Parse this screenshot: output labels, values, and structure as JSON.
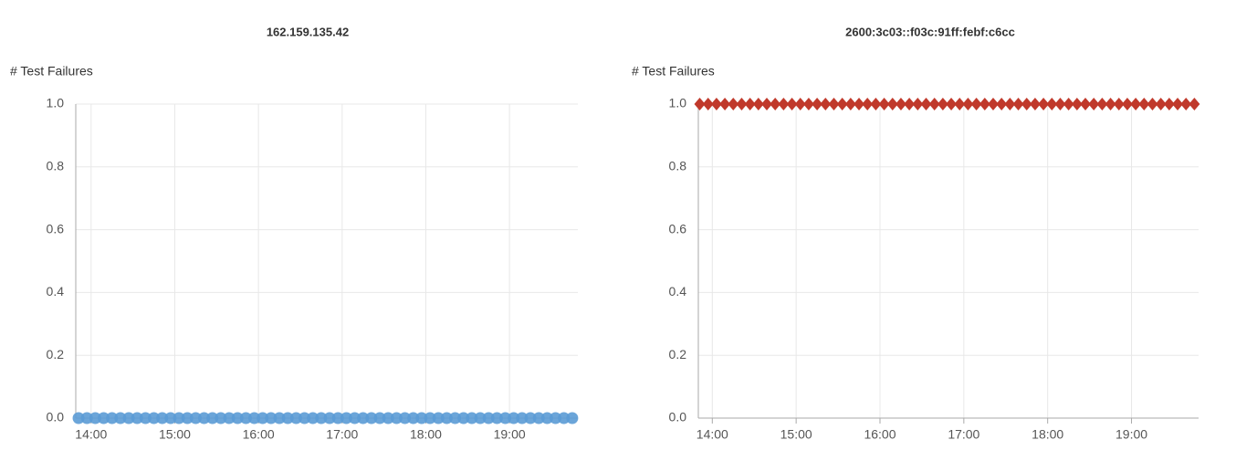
{
  "chart_data": [
    {
      "type": "scatter",
      "title": "162.159.135.42",
      "ylabel": "# Test Failures",
      "marker": "circle",
      "grid": true,
      "x": [
        "13:51",
        "13:57",
        "14:03",
        "14:09",
        "14:15",
        "14:21",
        "14:27",
        "14:33",
        "14:39",
        "14:45",
        "14:51",
        "14:57",
        "15:03",
        "15:09",
        "15:15",
        "15:21",
        "15:27",
        "15:33",
        "15:39",
        "15:45",
        "15:51",
        "15:57",
        "16:03",
        "16:09",
        "16:15",
        "16:21",
        "16:27",
        "16:33",
        "16:39",
        "16:45",
        "16:51",
        "16:57",
        "17:03",
        "17:09",
        "17:15",
        "17:21",
        "17:27",
        "17:33",
        "17:39",
        "17:45",
        "17:51",
        "17:57",
        "18:03",
        "18:09",
        "18:15",
        "18:21",
        "18:27",
        "18:33",
        "18:39",
        "18:45",
        "18:51",
        "18:57",
        "19:03",
        "19:09",
        "19:15",
        "19:21",
        "19:27",
        "19:33",
        "19:39",
        "19:45"
      ],
      "series": [
        {
          "name": "162.159.135.42",
          "color": "#5b9bd5",
          "values": [
            0,
            0,
            0,
            0,
            0,
            0,
            0,
            0,
            0,
            0,
            0,
            0,
            0,
            0,
            0,
            0,
            0,
            0,
            0,
            0,
            0,
            0,
            0,
            0,
            0,
            0,
            0,
            0,
            0,
            0,
            0,
            0,
            0,
            0,
            0,
            0,
            0,
            0,
            0,
            0,
            0,
            0,
            0,
            0,
            0,
            0,
            0,
            0,
            0,
            0,
            0,
            0,
            0,
            0,
            0,
            0,
            0,
            0,
            0,
            0
          ]
        }
      ],
      "xlim": [
        "13:49",
        "19:49"
      ],
      "xticks": [
        "14:00",
        "15:00",
        "16:00",
        "17:00",
        "18:00",
        "19:00"
      ],
      "ylim": [
        0,
        1
      ],
      "yticks": [
        {
          "value": 0,
          "label": "0.0"
        },
        {
          "value": 0.2,
          "label": "0.2"
        },
        {
          "value": 0.4,
          "label": "0.4"
        },
        {
          "value": 0.6,
          "label": "0.6"
        },
        {
          "value": 0.8,
          "label": "0.8"
        },
        {
          "value": 1,
          "label": "1.0"
        }
      ]
    },
    {
      "type": "scatter",
      "title": "2600:3c03::f03c:91ff:febf:c6cc",
      "ylabel": "# Test Failures",
      "marker": "diamond",
      "grid": true,
      "x": [
        "13:51",
        "13:57",
        "14:03",
        "14:09",
        "14:15",
        "14:21",
        "14:27",
        "14:33",
        "14:39",
        "14:45",
        "14:51",
        "14:57",
        "15:03",
        "15:09",
        "15:15",
        "15:21",
        "15:27",
        "15:33",
        "15:39",
        "15:45",
        "15:51",
        "15:57",
        "16:03",
        "16:09",
        "16:15",
        "16:21",
        "16:27",
        "16:33",
        "16:39",
        "16:45",
        "16:51",
        "16:57",
        "17:03",
        "17:09",
        "17:15",
        "17:21",
        "17:27",
        "17:33",
        "17:39",
        "17:45",
        "17:51",
        "17:57",
        "18:03",
        "18:09",
        "18:15",
        "18:21",
        "18:27",
        "18:33",
        "18:39",
        "18:45",
        "18:51",
        "18:57",
        "19:03",
        "19:09",
        "19:15",
        "19:21",
        "19:27",
        "19:33",
        "19:39",
        "19:45"
      ],
      "series": [
        {
          "name": "2600:3c03::f03c:91ff:febf:c6cc",
          "color": "#c0392b",
          "values": [
            1,
            1,
            1,
            1,
            1,
            1,
            1,
            1,
            1,
            1,
            1,
            1,
            1,
            1,
            1,
            1,
            1,
            1,
            1,
            1,
            1,
            1,
            1,
            1,
            1,
            1,
            1,
            1,
            1,
            1,
            1,
            1,
            1,
            1,
            1,
            1,
            1,
            1,
            1,
            1,
            1,
            1,
            1,
            1,
            1,
            1,
            1,
            1,
            1,
            1,
            1,
            1,
            1,
            1,
            1,
            1,
            1,
            1,
            1,
            1
          ]
        }
      ],
      "xlim": [
        "13:50",
        "19:48"
      ],
      "xticks": [
        "14:00",
        "15:00",
        "16:00",
        "17:00",
        "18:00",
        "19:00"
      ],
      "ylim": [
        0,
        1
      ],
      "yticks": [
        {
          "value": 0,
          "label": "0.0"
        },
        {
          "value": 0.2,
          "label": "0.2"
        },
        {
          "value": 0.4,
          "label": "0.4"
        },
        {
          "value": 0.6,
          "label": "0.6"
        },
        {
          "value": 0.8,
          "label": "0.8"
        },
        {
          "value": 1,
          "label": "1.0"
        }
      ]
    }
  ]
}
